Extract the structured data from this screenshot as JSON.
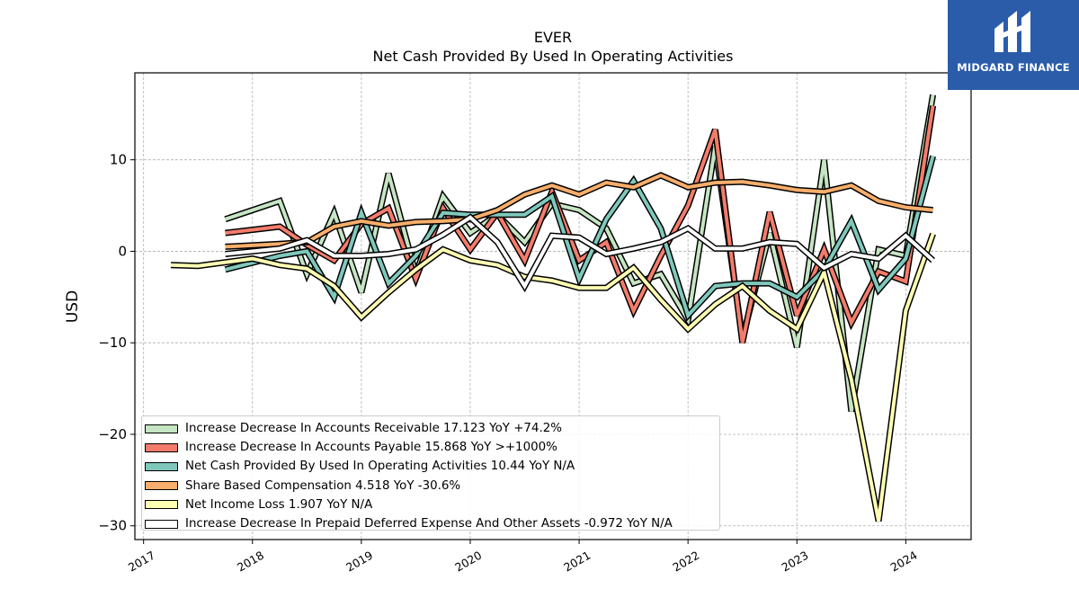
{
  "title": "EVER",
  "subtitle": "Net Cash Provided By Used In Operating Activities",
  "logo": {
    "text": "MIDGARD FINANCE",
    "bg": "#2a5caa"
  },
  "chart_data": {
    "type": "line",
    "title": "EVER",
    "subtitle": "Net Cash Provided By Used In Operating Activities",
    "xlabel": "",
    "ylabel": "USD",
    "xlim": [
      2016.92,
      2024.6
    ],
    "ylim": [
      -31.5,
      19.5
    ],
    "grid": true,
    "legend_position": "lower-left",
    "x_ticks": [
      2017,
      2018,
      2019,
      2020,
      2021,
      2022,
      2023,
      2024
    ],
    "x_tick_labels": [
      "2017",
      "2018",
      "2019",
      "2020",
      "2021",
      "2022",
      "2023",
      "2024"
    ],
    "y_ticks": [
      -30,
      -20,
      -10,
      0,
      10
    ],
    "y_tick_labels": [
      "−30",
      "−20",
      "−10",
      "0",
      "10"
    ],
    "series": [
      {
        "name": "Increase Decrease In Accounts Receivable",
        "legend": "Increase Decrease In Accounts Receivable  17.123 YoY +74.2%",
        "color": "#c6e5c3",
        "points": [
          [
            2017.75,
            3.5
          ],
          [
            2018.25,
            5.5
          ],
          [
            2018.5,
            -2.5
          ],
          [
            2018.75,
            4.2
          ],
          [
            2019.0,
            -4.5
          ],
          [
            2019.25,
            8.5
          ],
          [
            2019.5,
            -2.5
          ],
          [
            2019.75,
            6.0
          ],
          [
            2020.0,
            2.0
          ],
          [
            2020.25,
            4.0
          ],
          [
            2020.5,
            1.0
          ],
          [
            2020.75,
            5.2
          ],
          [
            2021.0,
            4.5
          ],
          [
            2021.25,
            2.5
          ],
          [
            2021.5,
            -3.5
          ],
          [
            2021.75,
            -2.5
          ],
          [
            2022.0,
            -7.5
          ],
          [
            2022.25,
            11.5
          ],
          [
            2022.5,
            -9.5
          ],
          [
            2022.75,
            2.0
          ],
          [
            2023.0,
            -10.5
          ],
          [
            2023.25,
            10.0
          ],
          [
            2023.5,
            -17.5
          ],
          [
            2023.75,
            0.2
          ],
          [
            2024.0,
            -0.5
          ],
          [
            2024.25,
            17.1
          ]
        ]
      },
      {
        "name": "Increase Decrease In Accounts Payable",
        "legend": "Increase Decrease In Accounts Payable  15.868 YoY >+1000%",
        "color": "#f47c6c",
        "points": [
          [
            2017.75,
            2.0
          ],
          [
            2018.25,
            2.7
          ],
          [
            2018.5,
            0.7
          ],
          [
            2018.75,
            -1.0
          ],
          [
            2019.0,
            3.0
          ],
          [
            2019.25,
            4.7
          ],
          [
            2019.5,
            -3.0
          ],
          [
            2019.75,
            4.7
          ],
          [
            2020.0,
            0.2
          ],
          [
            2020.25,
            4.2
          ],
          [
            2020.5,
            -1.0
          ],
          [
            2020.75,
            6.5
          ],
          [
            2021.0,
            -1.0
          ],
          [
            2021.25,
            1.0
          ],
          [
            2021.5,
            -6.5
          ],
          [
            2021.75,
            -0.5
          ],
          [
            2022.0,
            5.0
          ],
          [
            2022.25,
            13.3
          ],
          [
            2022.5,
            -10.0
          ],
          [
            2022.75,
            4.3
          ],
          [
            2023.0,
            -7.0
          ],
          [
            2023.25,
            0.2
          ],
          [
            2023.5,
            -7.8
          ],
          [
            2023.75,
            -2.2
          ],
          [
            2024.0,
            -3.3
          ],
          [
            2024.25,
            15.9
          ]
        ]
      },
      {
        "name": "Net Cash Provided By Used In Operating Activities",
        "legend": "Net Cash Provided By Used In Operating Activities  10.44 YoY N/A",
        "color": "#7fc8bc",
        "points": [
          [
            2017.75,
            -2.0
          ],
          [
            2018.25,
            -0.5
          ],
          [
            2018.5,
            0.0
          ],
          [
            2018.75,
            -5.0
          ],
          [
            2019.0,
            4.2
          ],
          [
            2019.25,
            -3.5
          ],
          [
            2019.5,
            -0.5
          ],
          [
            2019.75,
            4.2
          ],
          [
            2020.0,
            4.0
          ],
          [
            2020.25,
            4.0
          ],
          [
            2020.5,
            4.0
          ],
          [
            2020.75,
            6.0
          ],
          [
            2021.0,
            -3.0
          ],
          [
            2021.25,
            3.5
          ],
          [
            2021.5,
            7.7
          ],
          [
            2021.75,
            2.5
          ],
          [
            2022.0,
            -7.0
          ],
          [
            2022.25,
            -3.8
          ],
          [
            2022.5,
            -3.5
          ],
          [
            2022.75,
            -3.5
          ],
          [
            2023.0,
            -5.0
          ],
          [
            2023.25,
            -2.0
          ],
          [
            2023.5,
            3.3
          ],
          [
            2023.75,
            -4.2
          ],
          [
            2024.0,
            -0.8
          ],
          [
            2024.25,
            10.4
          ]
        ]
      },
      {
        "name": "Share Based Compensation",
        "legend": "Share Based Compensation  4.518 YoY -30.6%",
        "color": "#f9ae6b",
        "points": [
          [
            2017.75,
            0.5
          ],
          [
            2018.25,
            0.8
          ],
          [
            2018.5,
            1.0
          ],
          [
            2018.75,
            2.7
          ],
          [
            2019.0,
            3.3
          ],
          [
            2019.25,
            2.8
          ],
          [
            2019.5,
            3.2
          ],
          [
            2019.75,
            3.3
          ],
          [
            2020.0,
            3.5
          ],
          [
            2020.25,
            4.5
          ],
          [
            2020.5,
            6.2
          ],
          [
            2020.75,
            7.2
          ],
          [
            2021.0,
            6.2
          ],
          [
            2021.25,
            7.5
          ],
          [
            2021.5,
            7.0
          ],
          [
            2021.75,
            8.3
          ],
          [
            2022.0,
            7.0
          ],
          [
            2022.25,
            7.5
          ],
          [
            2022.5,
            7.6
          ],
          [
            2022.75,
            7.2
          ],
          [
            2023.0,
            6.7
          ],
          [
            2023.25,
            6.5
          ],
          [
            2023.5,
            7.2
          ],
          [
            2023.75,
            5.5
          ],
          [
            2024.0,
            4.8
          ],
          [
            2024.25,
            4.5
          ]
        ]
      },
      {
        "name": "Net Income Loss",
        "legend": "Net Income Loss  1.907 YoY N/A",
        "color": "#ffffb3",
        "points": [
          [
            2017.25,
            -1.5
          ],
          [
            2017.5,
            -1.6
          ],
          [
            2017.75,
            -1.2
          ],
          [
            2018.0,
            -0.8
          ],
          [
            2018.25,
            -1.5
          ],
          [
            2018.5,
            -1.9
          ],
          [
            2018.75,
            -3.8
          ],
          [
            2019.0,
            -7.2
          ],
          [
            2019.25,
            -4.5
          ],
          [
            2019.5,
            -2.0
          ],
          [
            2019.75,
            0.2
          ],
          [
            2020.0,
            -1.0
          ],
          [
            2020.25,
            -1.5
          ],
          [
            2020.5,
            -2.8
          ],
          [
            2020.75,
            -3.2
          ],
          [
            2021.0,
            -4.0
          ],
          [
            2021.25,
            -4.0
          ],
          [
            2021.5,
            -1.8
          ],
          [
            2021.75,
            -5.3
          ],
          [
            2022.0,
            -8.5
          ],
          [
            2022.25,
            -5.8
          ],
          [
            2022.5,
            -3.8
          ],
          [
            2022.75,
            -6.5
          ],
          [
            2023.0,
            -8.5
          ],
          [
            2023.25,
            -2.3
          ],
          [
            2023.5,
            -14.0
          ],
          [
            2023.75,
            -29.5
          ],
          [
            2024.0,
            -6.5
          ],
          [
            2024.25,
            1.9
          ]
        ]
      },
      {
        "name": "Increase Decrease In Prepaid Deferred Expense And Other Assets",
        "legend": "Increase Decrease In Prepaid Deferred Expense And Other Assets  -0.972 YoY N/A",
        "color": "#ffffff",
        "points": [
          [
            2017.75,
            -0.3
          ],
          [
            2018.25,
            0.3
          ],
          [
            2018.5,
            1.2
          ],
          [
            2018.75,
            -0.5
          ],
          [
            2019.0,
            -0.5
          ],
          [
            2019.25,
            -0.3
          ],
          [
            2019.5,
            0.2
          ],
          [
            2019.75,
            1.8
          ],
          [
            2020.0,
            3.7
          ],
          [
            2020.25,
            1.0
          ],
          [
            2020.5,
            -3.8
          ],
          [
            2020.75,
            1.7
          ],
          [
            2021.0,
            1.5
          ],
          [
            2021.25,
            -0.3
          ],
          [
            2021.5,
            0.3
          ],
          [
            2021.75,
            1.0
          ],
          [
            2022.0,
            2.5
          ],
          [
            2022.25,
            0.3
          ],
          [
            2022.5,
            0.3
          ],
          [
            2022.75,
            1.0
          ],
          [
            2023.0,
            0.8
          ],
          [
            2023.25,
            -1.8
          ],
          [
            2023.5,
            -0.3
          ],
          [
            2023.75,
            -0.8
          ],
          [
            2024.0,
            1.7
          ],
          [
            2024.25,
            -1.0
          ]
        ]
      }
    ]
  }
}
